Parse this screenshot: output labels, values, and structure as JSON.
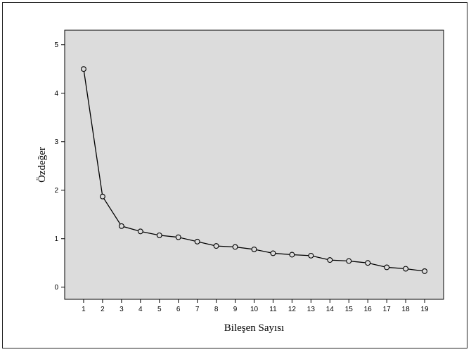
{
  "chart_data": {
    "type": "line",
    "title": "",
    "xlabel": "Bileşen Sayısı",
    "ylabel": "Özdeğer",
    "x": [
      1,
      2,
      3,
      4,
      5,
      6,
      7,
      8,
      9,
      10,
      11,
      12,
      13,
      14,
      15,
      16,
      17,
      18,
      19
    ],
    "series": [
      {
        "values": [
          4.5,
          1.87,
          1.26,
          1.15,
          1.07,
          1.03,
          0.94,
          0.85,
          0.83,
          0.78,
          0.7,
          0.67,
          0.65,
          0.56,
          0.54,
          0.5,
          0.41,
          0.38,
          0.33
        ]
      }
    ],
    "xlim": [
      0,
      20
    ],
    "ylim": [
      -0.25,
      5.3
    ],
    "yticks": [
      0,
      1,
      2,
      3,
      4,
      5
    ],
    "xticks": [
      1,
      2,
      3,
      4,
      5,
      6,
      7,
      8,
      9,
      10,
      11,
      12,
      13,
      14,
      15,
      16,
      17,
      18,
      19
    ],
    "grid": false,
    "legend": "none",
    "colors": {
      "plot_background": "#dcdcdc",
      "line": "#000000",
      "marker_fill": "#dcdcdc"
    }
  }
}
